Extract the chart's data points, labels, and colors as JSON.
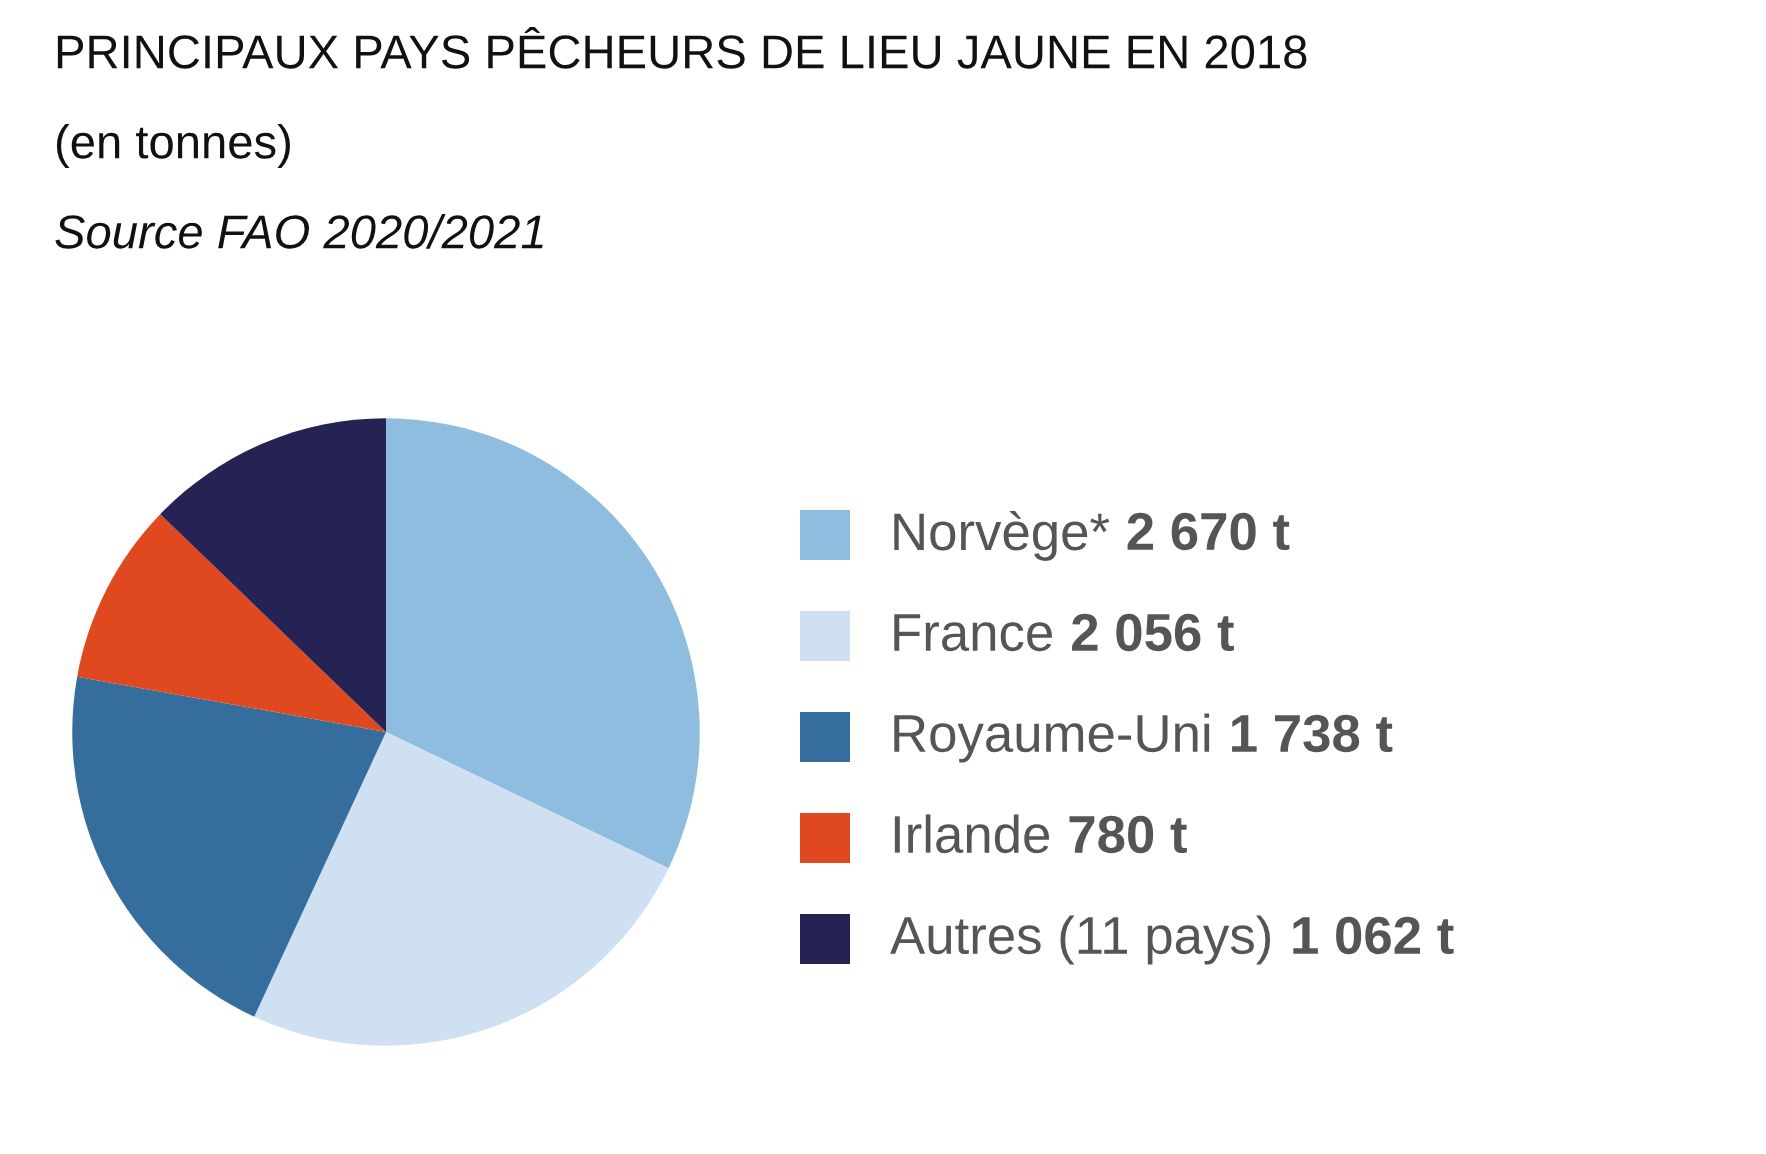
{
  "chart_data": {
    "type": "pie",
    "title": "PRINCIPAUX PAYS PÊCHEURS DE LIEU JAUNE EN 2018",
    "subtitle": "(en tonnes)",
    "annotations": [
      "Source FAO 2020/2021"
    ],
    "categories": [
      "Norvège*",
      "France",
      "Royaume-Uni",
      "Irlande",
      "Autres (11 pays)"
    ],
    "values": [
      2670,
      2056,
      1738,
      780,
      1062
    ],
    "value_labels": [
      "2 670 t",
      "2 056 t",
      "1 738 t",
      "780 t",
      "1 062 t"
    ],
    "colors": [
      "#8fbde0",
      "#cfe0f3",
      "#356d9c",
      "#e0481f",
      "#252353"
    ],
    "legend": "right"
  }
}
